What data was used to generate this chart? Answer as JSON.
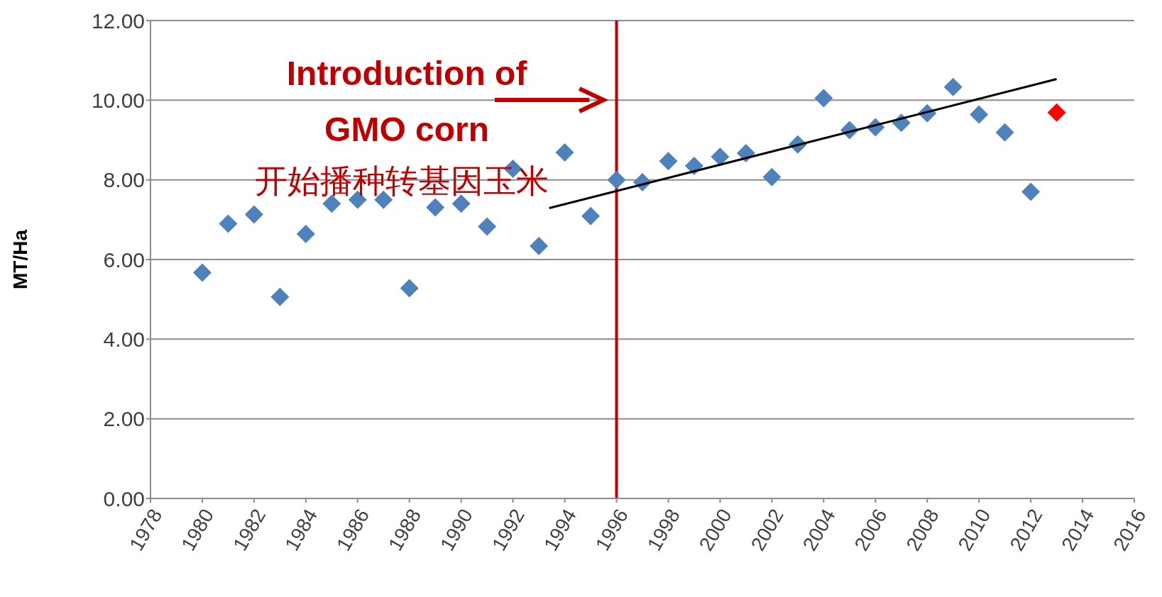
{
  "chart_data": {
    "type": "scatter",
    "ylabel": "MT/Ha",
    "marker": "diamond",
    "grid": "y",
    "legend": false,
    "xlim": [
      1978,
      2016
    ],
    "xticks": [
      1978,
      1980,
      1982,
      1984,
      1986,
      1988,
      1990,
      1992,
      1994,
      1996,
      1998,
      2000,
      2002,
      2004,
      2006,
      2008,
      2010,
      2012,
      2014,
      2016
    ],
    "ylim": [
      0,
      12
    ],
    "yticks": [
      {
        "value": 0,
        "label": "0.00"
      },
      {
        "value": 2,
        "label": "2.00"
      },
      {
        "value": 4,
        "label": "4.00"
      },
      {
        "value": 6,
        "label": "6.00"
      },
      {
        "value": 8,
        "label": "8.00"
      },
      {
        "value": 10,
        "label": "10.00"
      },
      {
        "value": 12,
        "label": "12.00"
      }
    ],
    "series": [
      {
        "color": "#4f81bd",
        "x": [
          1980,
          1981,
          1982,
          1983,
          1984,
          1985,
          1986,
          1987,
          1988,
          1989,
          1990,
          1991,
          1992,
          1993,
          1994,
          1995,
          1996,
          1997,
          1998,
          1999,
          2000,
          2001,
          2002,
          2003,
          2004,
          2005,
          2006,
          2007,
          2008,
          2009,
          2010,
          2011,
          2012
        ],
        "values": [
          5.67,
          6.9,
          7.13,
          5.06,
          6.64,
          7.4,
          7.5,
          7.5,
          5.28,
          7.31,
          7.4,
          6.83,
          8.28,
          6.34,
          8.69,
          7.09,
          8.0,
          7.94,
          8.47,
          8.35,
          8.58,
          8.67,
          8.07,
          8.89,
          10.05,
          9.25,
          9.32,
          9.43,
          9.67,
          10.33,
          9.64,
          9.19,
          7.7
        ]
      },
      {
        "color": "#ff0000",
        "x": [
          2013
        ],
        "values": [
          9.69
        ]
      },
      {
        "type": "line",
        "color": "#000000",
        "marker": "none",
        "x": [
          1993.4,
          2013
        ],
        "values": [
          7.29,
          10.53
        ]
      }
    ],
    "ref_lines": [
      {
        "axis": "x",
        "value": 1996,
        "color": "#c00000"
      }
    ],
    "annotations": [
      "Introduction of",
      "GMO corn",
      "开始播种转基因玉米"
    ]
  }
}
